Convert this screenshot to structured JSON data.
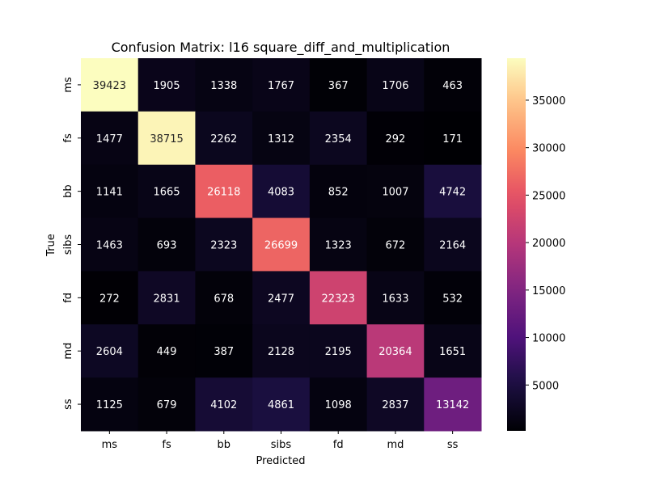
{
  "chart_data": {
    "type": "heatmap",
    "title": "Confusion Matrix: l16 square_diff_and_multiplication",
    "xlabel": "Predicted",
    "ylabel": "True",
    "x_categories": [
      "ms",
      "fs",
      "bb",
      "sibs",
      "fd",
      "md",
      "ss"
    ],
    "y_categories": [
      "ms",
      "fs",
      "bb",
      "sibs",
      "fd",
      "md",
      "ss"
    ],
    "values": [
      [
        39423,
        1905,
        1338,
        1767,
        367,
        1706,
        463
      ],
      [
        1477,
        38715,
        2262,
        1312,
        2354,
        292,
        171
      ],
      [
        1141,
        1665,
        26118,
        4083,
        852,
        1007,
        4742
      ],
      [
        1463,
        693,
        2323,
        26699,
        1323,
        672,
        2164
      ],
      [
        272,
        2831,
        678,
        2477,
        22323,
        1633,
        532
      ],
      [
        2604,
        449,
        387,
        2128,
        2195,
        20364,
        1651
      ],
      [
        1125,
        679,
        4102,
        4861,
        1098,
        2837,
        13142
      ]
    ],
    "colormap": "magma",
    "colorbar": {
      "range": [
        171,
        39423
      ],
      "ticks": [
        5000,
        10000,
        15000,
        20000,
        25000,
        30000,
        35000
      ]
    }
  }
}
